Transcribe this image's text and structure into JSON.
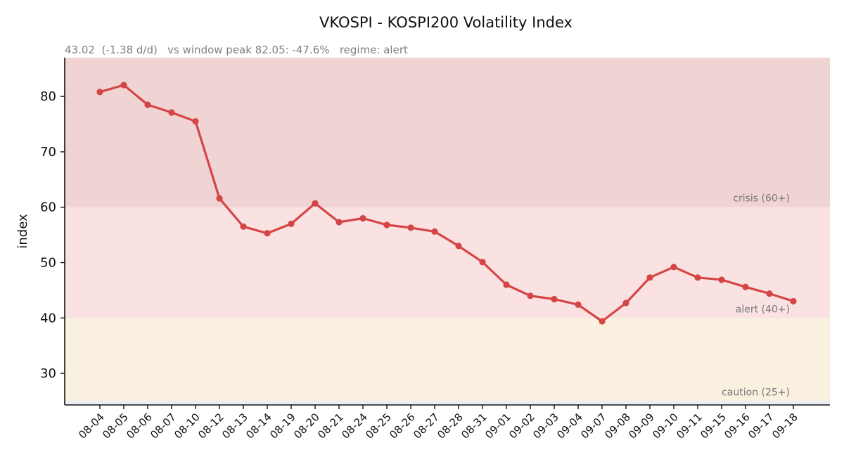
{
  "chart_data": {
    "type": "line",
    "title": "VKOSPI - KOSPI200 Volatility Index",
    "subtitle": "43.02  (-1.38 d/d)   vs window peak 82.05: -47.6%   regime: alert",
    "xlabel": "",
    "ylabel": "index",
    "ylim": [
      24.3,
      87.0
    ],
    "yticks": [
      30,
      40,
      50,
      60,
      70,
      80
    ],
    "grid": false,
    "categories": [
      "08-04",
      "08-05",
      "08-06",
      "08-07",
      "08-10",
      "08-12",
      "08-13",
      "08-14",
      "08-19",
      "08-20",
      "08-21",
      "08-24",
      "08-25",
      "08-26",
      "08-27",
      "08-28",
      "08-31",
      "09-01",
      "09-02",
      "09-03",
      "09-04",
      "09-07",
      "09-08",
      "09-09",
      "09-10",
      "09-11",
      "09-15",
      "09-16",
      "09-17",
      "09-18"
    ],
    "series": [
      {
        "color": "#d64545",
        "values": [
          80.8,
          82.05,
          78.5,
          77.1,
          75.5,
          61.6,
          56.5,
          55.3,
          57.0,
          60.7,
          57.3,
          58.0,
          56.8,
          56.3,
          55.6,
          53.0,
          50.1,
          46.0,
          44.0,
          43.4,
          42.4,
          39.4,
          42.7,
          47.3,
          49.2,
          47.3,
          46.9,
          45.6,
          44.4,
          43.02
        ]
      }
    ],
    "zones": [
      {
        "label": "crisis (60+)",
        "from": 60,
        "to": 87.0,
        "color": "#f0d4d4"
      },
      {
        "label": "alert (40+)",
        "from": 40,
        "to": 60,
        "color": "#f9e2e1"
      },
      {
        "label": "caution (25+)",
        "from": 25,
        "to": 40,
        "color": "#faf0e0"
      },
      {
        "label": "",
        "from": 24.3,
        "to": 25,
        "color": "#e8eef4"
      }
    ]
  }
}
